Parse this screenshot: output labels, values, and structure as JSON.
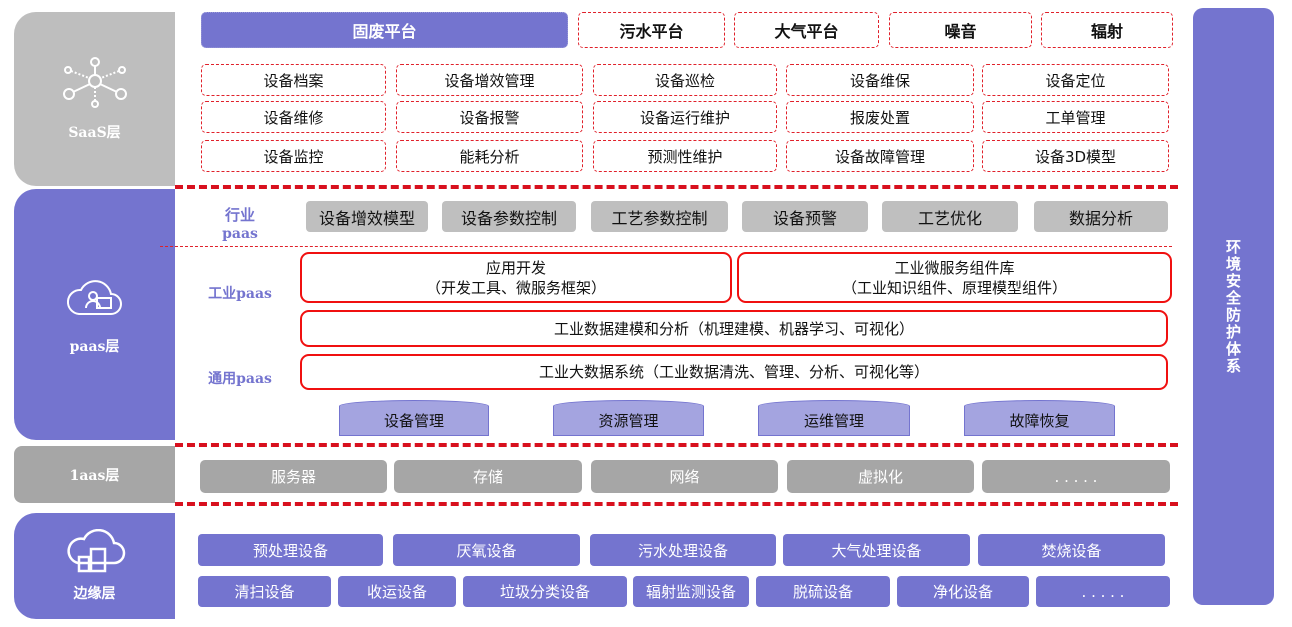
{
  "layers": {
    "saas": "SaaS层",
    "paas": "paas层",
    "iaas": "1aas层",
    "edge": "边缘层"
  },
  "right_bar": "环境安全防护体系",
  "platforms": [
    "固废平台",
    "污水平台",
    "大气平台",
    "噪音",
    "辐射"
  ],
  "saas_grid": [
    "设备档案",
    "设备增效管理",
    "设备巡检",
    "设备维保",
    "设备定位",
    "设备维修",
    "设备报警",
    "设备运行维护",
    "报废处置",
    "工单管理",
    "设备监控",
    "能耗分析",
    "预测性维护",
    "设备故障管理",
    "设备3D模型"
  ],
  "industry_paas": {
    "label_1": "行业",
    "label_2": "paas",
    "items": [
      "设备增效模型",
      "设备参数控制",
      "工艺参数控制",
      "设备预警",
      "工艺优化",
      "数据分析"
    ]
  },
  "industrial_paas": {
    "label": "工业paas",
    "app_dev": {
      "title": "应用开发",
      "sub": "（开发工具、微服务框架）"
    },
    "micro": {
      "title": "工业微服务组件库",
      "sub": "（工业知识组件、原理模型组件）"
    },
    "modeling": "工业数据建模和分析（机理建模、机器学习、可视化）"
  },
  "general_paas": {
    "label": "通用paas",
    "bigdata": "工业大数据系统（工业数据清洗、管理、分析、可视化等）",
    "cylinders": [
      "设备管理",
      "资源管理",
      "运维管理",
      "故障恢复"
    ]
  },
  "iaas_items": [
    "服务器",
    "存储",
    "网络",
    "虚拟化",
    ". . . . ."
  ],
  "edge_row1": [
    "预处理设备",
    "厌氧设备",
    "污水处理设备",
    "大气处理设备",
    "焚烧设备"
  ],
  "edge_row2": [
    "清扫设备",
    "收运设备",
    "垃圾分类设备",
    "辐射监测设备",
    "脱硫设备",
    "净化设备",
    ". . . . ."
  ],
  "colors": {
    "purple": "#7474cf",
    "red": "#e0101e",
    "gray": "#bfbfbf"
  }
}
